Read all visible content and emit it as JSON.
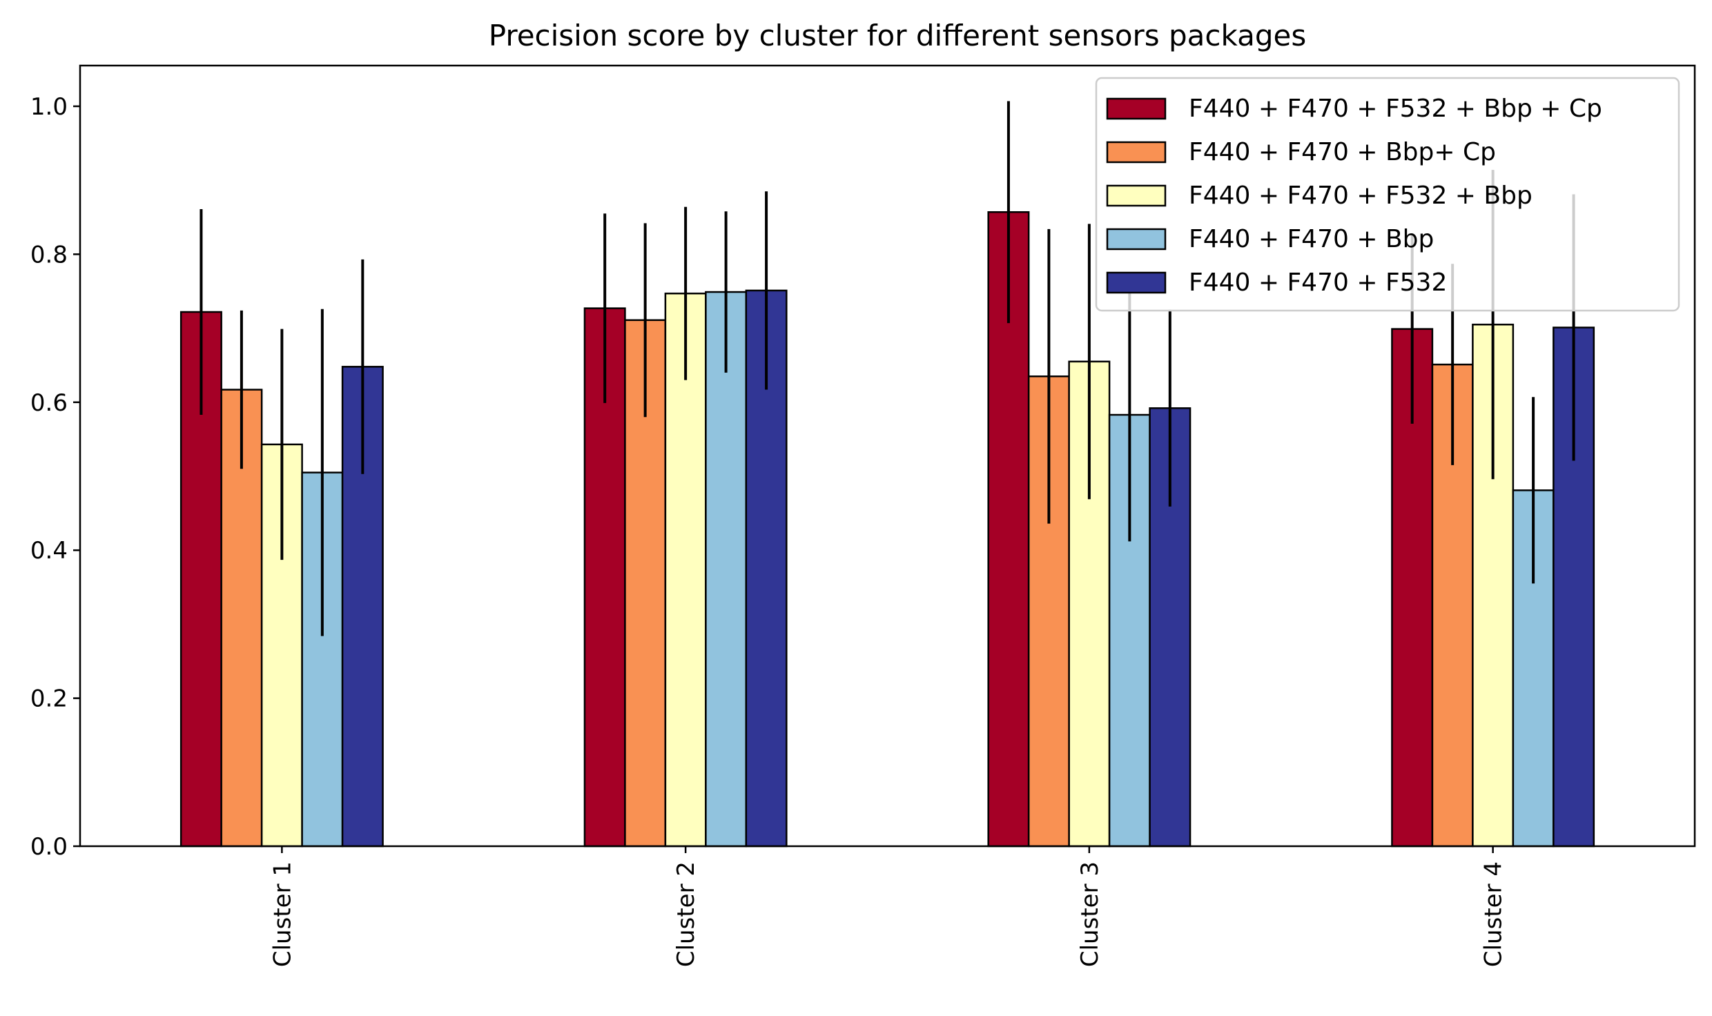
{
  "chart_data": {
    "type": "bar",
    "title": "Precision score by cluster for different sensors packages",
    "xlabel": "",
    "ylabel": "",
    "ylim": [
      0,
      1.055
    ],
    "yticks": [
      "0.0",
      "0.2",
      "0.4",
      "0.6",
      "0.8",
      "1.0"
    ],
    "categories": [
      "Cluster 1",
      "Cluster 2",
      "Cluster 3",
      "Cluster 4"
    ],
    "legend_position": "top-right",
    "grid": false,
    "error_bars": true,
    "series": [
      {
        "name": "F440 + F470 + F532 + Bbp + Cp",
        "color": "#a50026",
        "values": [
          0.722,
          0.727,
          0.857,
          0.699
        ],
        "err": [
          0.139,
          0.128,
          0.15,
          0.128
        ]
      },
      {
        "name": "F440 + F470 + Bbp+ Cp",
        "color": "#f99153",
        "values": [
          0.617,
          0.711,
          0.635,
          0.651
        ],
        "err": [
          0.107,
          0.131,
          0.199,
          0.136
        ]
      },
      {
        "name": "F440 + F470 + F532 + Bbp",
        "color": "#ffffbf",
        "values": [
          0.543,
          0.747,
          0.655,
          0.705
        ],
        "err": [
          0.156,
          0.117,
          0.186,
          0.209
        ]
      },
      {
        "name": "F440 + F470 + Bbp",
        "color": "#91c3de",
        "values": [
          0.505,
          0.749,
          0.583,
          0.481
        ],
        "err": [
          0.221,
          0.109,
          0.171,
          0.126
        ]
      },
      {
        "name": "F440 + F470 + F532",
        "color": "#313695",
        "values": [
          0.648,
          0.751,
          0.592,
          0.701
        ],
        "err": [
          0.145,
          0.134,
          0.133,
          0.18
        ]
      }
    ]
  }
}
